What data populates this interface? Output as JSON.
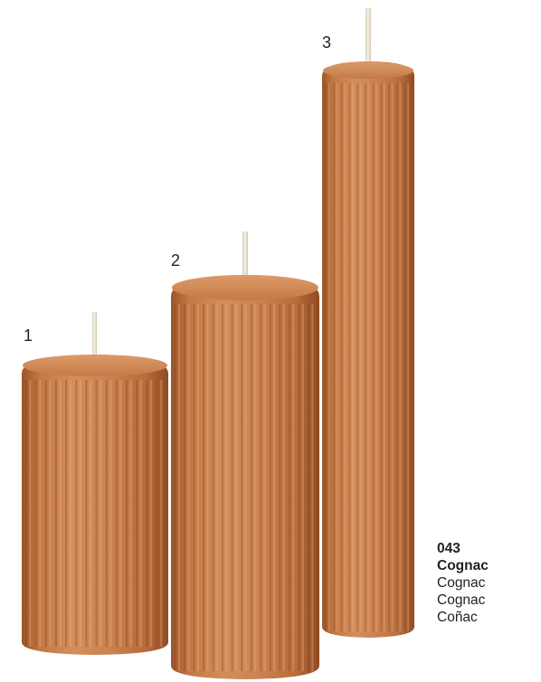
{
  "candles": [
    {
      "label": "1"
    },
    {
      "label": "2"
    },
    {
      "label": "3"
    }
  ],
  "color_swatch": {
    "code": "043",
    "name": "Cognac",
    "translations": [
      "Cognac",
      "Cognac",
      "Coñac"
    ]
  },
  "colors": {
    "candle_base": "#c47a47",
    "candle_light": "#e1a070",
    "candle_dark": "#8f4e26",
    "wick": "#efe9d8"
  }
}
